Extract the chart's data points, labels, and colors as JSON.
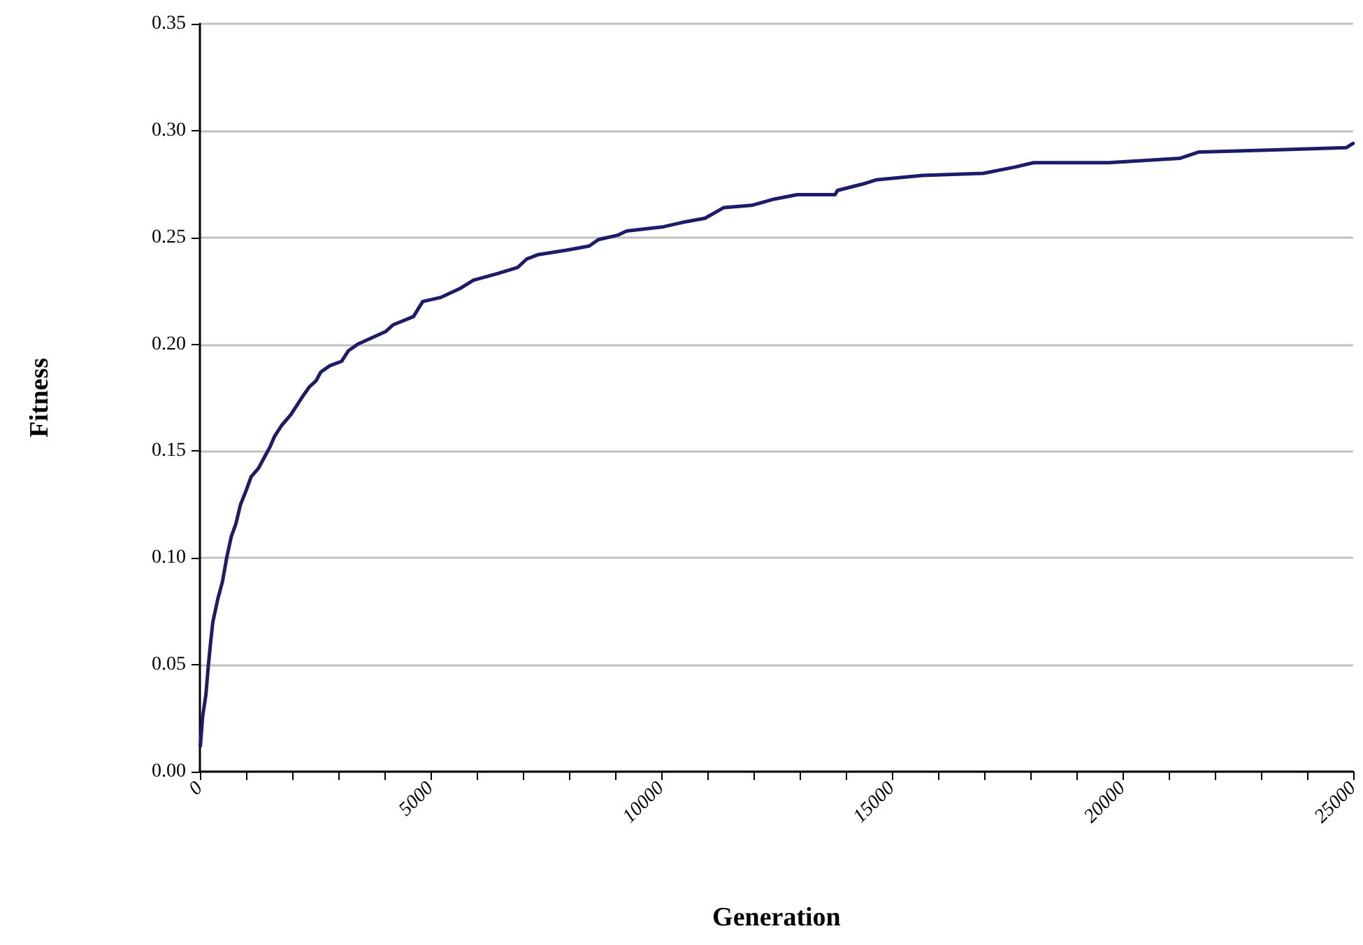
{
  "chart_data": {
    "type": "line",
    "xlabel": "Generation",
    "ylabel": "Fitness",
    "xlim": [
      0,
      25000
    ],
    "ylim": [
      0,
      0.35
    ],
    "xticks": [
      0,
      {
        "value": 1000,
        "label": null
      },
      {
        "value": 2000,
        "label": null
      },
      {
        "value": 3000,
        "label": null
      },
      {
        "value": 4000,
        "label": null
      },
      5000,
      {
        "value": 6000,
        "label": null
      },
      {
        "value": 7000,
        "label": null
      },
      {
        "value": 8000,
        "label": null
      },
      {
        "value": 9000,
        "label": null
      },
      10000,
      {
        "value": 11000,
        "label": null
      },
      {
        "value": 12000,
        "label": null
      },
      {
        "value": 13000,
        "label": null
      },
      {
        "value": 14000,
        "label": null
      },
      15000,
      {
        "value": 16000,
        "label": null
      },
      {
        "value": 17000,
        "label": null
      },
      {
        "value": 18000,
        "label": null
      },
      {
        "value": 19000,
        "label": null
      },
      20000,
      {
        "value": 21000,
        "label": null
      },
      {
        "value": 22000,
        "label": null
      },
      {
        "value": 23000,
        "label": null
      },
      {
        "value": 24000,
        "label": null
      },
      25000
    ],
    "yticks": [
      {
        "value": 0,
        "label": "0.00"
      },
      {
        "value": 0.05,
        "label": "0.05"
      },
      {
        "value": 0.1,
        "label": "0.10"
      },
      {
        "value": 0.15,
        "label": "0.15"
      },
      {
        "value": 0.2,
        "label": "0.20"
      },
      {
        "value": 0.25,
        "label": "0.25"
      },
      {
        "value": 0.3,
        "label": "0.30"
      },
      {
        "value": 0.35,
        "label": "0.35"
      }
    ],
    "grid": "y",
    "marker": "none",
    "line_style": "solid",
    "series": [
      {
        "color": "#1c1c6b",
        "x": [
          10,
          60,
          130,
          180,
          230,
          280,
          390,
          490,
          580,
          680,
          780,
          880,
          1010,
          1110,
          1270,
          1420,
          1520,
          1620,
          1770,
          1970,
          2120,
          2240,
          2370,
          2520,
          2620,
          2820,
          3070,
          3220,
          3420,
          3720,
          4030,
          4180,
          4630,
          4830,
          5230,
          5630,
          5930,
          6440,
          6890,
          7090,
          7340,
          7940,
          8440,
          8640,
          9050,
          9250,
          9650,
          10050,
          10450,
          10950,
          11360,
          11960,
          12460,
          12950,
          13770,
          13820,
          14370,
          14670,
          15660,
          16980,
          17680,
          18070,
          19700,
          21240,
          21660,
          23400,
          24850,
          25000
        ],
        "values": [
          0.012,
          0.026,
          0.036,
          0.049,
          0.06,
          0.07,
          0.081,
          0.089,
          0.1,
          0.11,
          0.116,
          0.125,
          0.132,
          0.138,
          0.142,
          0.148,
          0.152,
          0.157,
          0.162,
          0.167,
          0.172,
          0.176,
          0.18,
          0.183,
          0.187,
          0.19,
          0.192,
          0.197,
          0.2,
          0.203,
          0.206,
          0.209,
          0.213,
          0.22,
          0.222,
          0.226,
          0.23,
          0.233,
          0.236,
          0.24,
          0.242,
          0.244,
          0.246,
          0.249,
          0.251,
          0.253,
          0.254,
          0.255,
          0.257,
          0.259,
          0.264,
          0.265,
          0.268,
          0.27,
          0.27,
          0.272,
          0.275,
          0.277,
          0.279,
          0.28,
          0.283,
          0.285,
          0.285,
          0.287,
          0.29,
          0.291,
          0.292,
          0.294
        ]
      }
    ]
  }
}
